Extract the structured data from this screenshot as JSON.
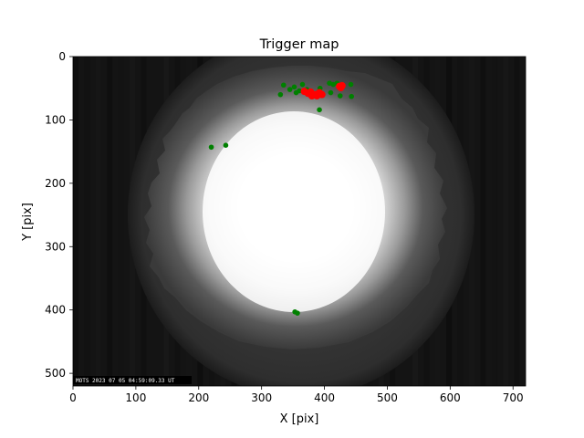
{
  "chart_data": {
    "type": "scatter",
    "title": "Trigger map",
    "xlabel": "X [pix]",
    "ylabel": "Y [pix]",
    "xlim": [
      0,
      720
    ],
    "ylim": [
      520,
      0
    ],
    "xticks": [
      0,
      100,
      200,
      300,
      400,
      500,
      600,
      700
    ],
    "yticks": [
      0,
      100,
      200,
      300,
      400,
      500
    ],
    "background": {
      "description": "all-sky camera frame",
      "overlay_text": "MOTS 2023 07 05 04:59:09.33 UT",
      "frame_color": "#1a1a1a",
      "glow_color": "#ffffff"
    },
    "series": [
      {
        "color": "#008000",
        "points": [
          [
            335,
            45
          ],
          [
            345,
            52
          ],
          [
            352,
            48
          ],
          [
            360,
            54
          ],
          [
            365,
            44
          ],
          [
            330,
            60
          ],
          [
            355,
            57
          ],
          [
            372,
            52
          ],
          [
            393,
            50
          ],
          [
            408,
            42
          ],
          [
            414,
            44
          ],
          [
            420,
            42
          ],
          [
            410,
            57
          ],
          [
            425,
            62
          ],
          [
            443,
            63
          ],
          [
            442,
            44
          ],
          [
            392,
            84
          ],
          [
            220,
            143
          ],
          [
            243,
            140
          ],
          [
            353,
            403
          ],
          [
            357,
            405
          ]
        ]
      },
      {
        "color": "#ff0000",
        "points": [
          [
            368,
            55
          ],
          [
            374,
            58
          ],
          [
            380,
            62
          ],
          [
            386,
            60
          ],
          [
            392,
            57
          ],
          [
            396,
            60
          ],
          [
            378,
            56
          ],
          [
            388,
            62
          ],
          [
            424,
            47
          ],
          [
            428,
            46
          ],
          [
            426,
            49
          ]
        ]
      }
    ]
  }
}
